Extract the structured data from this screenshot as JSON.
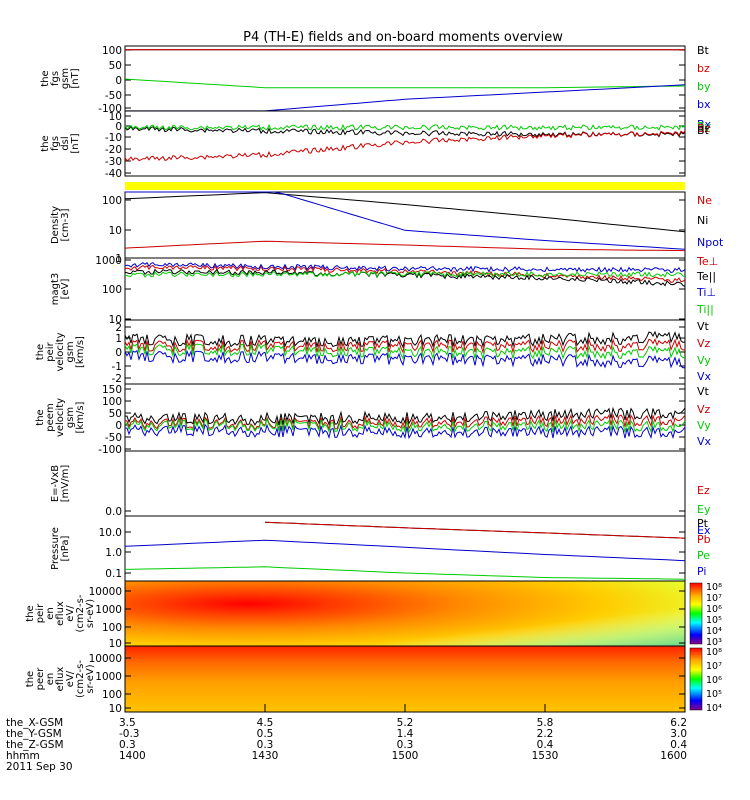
{
  "title": "P4 (TH-E) fields and on-board moments overview",
  "colors": {
    "black": "#000000",
    "red": "#cc0000",
    "green": "#00cc00",
    "blue": "#0000cc",
    "yellow": "#ffff00"
  },
  "chart_data": [
    {
      "type": "line",
      "panel": "fgs-gsm",
      "ylabel": [
        "the",
        "fgs",
        "gsm",
        "[nT]"
      ],
      "yticks": [
        "100",
        "50",
        "0",
        "-50",
        "-100"
      ],
      "ylim": [
        -100,
        100
      ],
      "x": [
        "1400",
        "1430",
        "1500",
        "1530",
        "1600"
      ],
      "legend": [
        "Bt",
        "bz",
        "by",
        "bx"
      ],
      "legend_colors": [
        "black",
        "red",
        "green",
        "blue"
      ],
      "series": [
        {
          "name": "Bt",
          "color": "black",
          "values": [
            101,
            101,
            101,
            101,
            101
          ]
        },
        {
          "name": "bz",
          "color": "red",
          "values": [
            101,
            101,
            101,
            101,
            101
          ]
        },
        {
          "name": "by",
          "color": "green",
          "values": [
            0,
            -30,
            -30,
            -30,
            -24
          ]
        },
        {
          "name": "bx",
          "color": "blue",
          "values": [
            -110,
            -110,
            -70,
            -45,
            -20
          ]
        }
      ]
    },
    {
      "type": "line",
      "panel": "fgs-dsl",
      "ylabel": [
        "the",
        "fgs",
        "dsl",
        "[nT]"
      ],
      "yticks": [
        "10",
        "0",
        "-10",
        "-20",
        "-30",
        "-40"
      ],
      "ylim": [
        -42,
        10
      ],
      "x": [
        "1400",
        "1430",
        "1500",
        "1530",
        "1600"
      ],
      "legend": [
        "Bx",
        "By",
        "Bz",
        "Bt"
      ],
      "legend_colors": [
        "blue",
        "green",
        "red",
        "black"
      ],
      "series": [
        {
          "name": "Bt",
          "color": "black",
          "values": [
            -1,
            -3,
            -5,
            -6,
            -6
          ]
        },
        {
          "name": "By",
          "color": "green",
          "values": [
            0,
            0,
            0,
            0,
            0
          ]
        },
        {
          "name": "Bz",
          "color": "red",
          "values": [
            -28,
            -24,
            -13,
            -7,
            -5
          ]
        }
      ]
    },
    {
      "type": "heatmap",
      "panel": "mode-bar",
      "color": "yellow"
    },
    {
      "type": "line",
      "panel": "density",
      "scale": "log",
      "ylabel": [
        "Density",
        "[cm-3]"
      ],
      "yticks": [
        "100",
        "10",
        "1"
      ],
      "ylim": [
        1,
        200
      ],
      "x": [
        "1400",
        "1430",
        "1500",
        "1530",
        "1600"
      ],
      "legend": [
        "Ne",
        "Ni",
        "Npot"
      ],
      "legend_colors": [
        "red",
        "black",
        "blue"
      ],
      "series": [
        {
          "name": "Ni",
          "color": "black",
          "values": [
            110,
            180,
            70,
            25,
            8
          ]
        },
        {
          "name": "Ne",
          "color": "red",
          "values": [
            2.2,
            3.8,
            2.8,
            2.0,
            1.8
          ]
        },
        {
          "name": "Npot",
          "color": "blue",
          "values": [
            250,
            250,
            9,
            4,
            2
          ]
        }
      ]
    },
    {
      "type": "line",
      "panel": "temperature",
      "scale": "log",
      "ylabel": [
        "magt3",
        "[eV]"
      ],
      "yticks": [
        "1000",
        "100",
        "10"
      ],
      "ylim": [
        10,
        1000
      ],
      "x": [
        "1400",
        "1430",
        "1500",
        "1530",
        "1600"
      ],
      "legend": [
        "Te⊥",
        "Te||",
        "Ti⊥",
        "Ti||"
      ],
      "legend_colors": [
        "red",
        "black",
        "blue",
        "green"
      ],
      "series": [
        {
          "name": "Te⊥",
          "color": "red",
          "values": [
            550,
            520,
            400,
            300,
            200
          ]
        },
        {
          "name": "Te||",
          "color": "black",
          "values": [
            400,
            380,
            300,
            250,
            150
          ]
        },
        {
          "name": "Ti⊥",
          "color": "blue",
          "values": [
            700,
            600,
            500,
            480,
            450
          ]
        },
        {
          "name": "Ti||",
          "color": "green",
          "values": [
            320,
            330,
            330,
            330,
            320
          ]
        }
      ]
    },
    {
      "type": "line",
      "panel": "peir-velocity",
      "ylabel": [
        "the",
        "peir",
        "velocity",
        "gsm",
        "[km/s]"
      ],
      "yticks": [
        "2",
        "1",
        "0",
        "-1",
        "-2"
      ],
      "ylim": [
        -2.5,
        2.5
      ],
      "x": [
        "1400",
        "1430",
        "1500",
        "1530",
        "1600"
      ],
      "legend": [
        "Vt",
        "Vz",
        "Vy",
        "Vx"
      ],
      "legend_colors": [
        "black",
        "red",
        "green",
        "blue"
      ],
      "series": [
        {
          "name": "Vt",
          "color": "black",
          "values": [
            1.0,
            0.9,
            0.9,
            1.0,
            1.2
          ]
        },
        {
          "name": "Vz",
          "color": "red",
          "values": [
            0.5,
            0.5,
            0.5,
            0.5,
            0.6
          ]
        },
        {
          "name": "Vy",
          "color": "green",
          "values": [
            0.2,
            0.2,
            0.0,
            0.0,
            0.0
          ]
        },
        {
          "name": "Vx",
          "color": "blue",
          "values": [
            -0.3,
            -0.4,
            -0.5,
            -0.6,
            -0.8
          ]
        }
      ]
    },
    {
      "type": "line",
      "panel": "peem-velocity",
      "ylabel": [
        "the",
        "peem",
        "velocity",
        "gsm",
        "[km/s]"
      ],
      "yticks": [
        "150",
        "100",
        "50",
        "0",
        "-50",
        "-100"
      ],
      "ylim": [
        -100,
        150
      ],
      "x": [
        "1400",
        "1430",
        "1500",
        "1530",
        "1600"
      ],
      "legend": [
        "Vt",
        "Vz",
        "Vy",
        "Vx"
      ],
      "legend_colors": [
        "black",
        "red",
        "green",
        "blue"
      ],
      "series": [
        {
          "name": "Vt",
          "color": "black",
          "values": [
            30,
            25,
            30,
            40,
            50
          ]
        },
        {
          "name": "Vz",
          "color": "red",
          "values": [
            10,
            5,
            10,
            15,
            20
          ]
        },
        {
          "name": "Vy",
          "color": "green",
          "values": [
            0,
            0,
            -5,
            -5,
            -5
          ]
        },
        {
          "name": "Vx",
          "color": "blue",
          "values": [
            -20,
            -25,
            -30,
            -30,
            -30
          ]
        }
      ]
    },
    {
      "type": "line",
      "panel": "efield",
      "ylabel": [
        "E=-VxB",
        "[mV/m]"
      ],
      "yticks": [
        "0.0"
      ],
      "legend": [
        "Ez",
        "Ey",
        "Ex"
      ],
      "legend_colors": [
        "red",
        "green",
        "blue"
      ],
      "series": []
    },
    {
      "type": "line",
      "panel": "pressure",
      "scale": "log",
      "ylabel": [
        "Pressure",
        "[nPa]"
      ],
      "yticks": [
        "10.0",
        "1.0",
        "0.1"
      ],
      "ylim": [
        0.05,
        40
      ],
      "x": [
        "1400",
        "1430",
        "1500",
        "1530",
        "1600"
      ],
      "legend": [
        "Pt",
        "Pb",
        "Pe",
        "Pi"
      ],
      "legend_colors": [
        "black",
        "red",
        "green",
        "blue"
      ],
      "series": [
        {
          "name": "Pt",
          "color": "black",
          "values": [
            null,
            30,
            16,
            9,
            5
          ]
        },
        {
          "name": "Pb",
          "color": "red",
          "values": [
            null,
            30,
            16,
            9,
            5
          ]
        },
        {
          "name": "Pe",
          "color": "green",
          "values": [
            0.15,
            0.2,
            0.1,
            0.06,
            0.05
          ]
        },
        {
          "name": "Pi",
          "color": "blue",
          "values": [
            2,
            4,
            1.8,
            0.8,
            0.4
          ]
        }
      ]
    },
    {
      "type": "heatmap",
      "panel": "peir-spectrogram",
      "scale": "log",
      "ylabel": [
        "the",
        "peir",
        "en",
        "eflux",
        "eV/",
        "(cm2-s-",
        "sr-eV)"
      ],
      "yticks": [
        "10000",
        "1000",
        "100",
        "10"
      ],
      "colorbar_ticks": [
        "10⁸",
        "10⁷",
        "10⁶",
        "10⁵",
        "10⁴",
        "10³"
      ]
    },
    {
      "type": "heatmap",
      "panel": "peer-spectrogram",
      "scale": "log",
      "ylabel": [
        "the",
        "peer",
        "en",
        "eflux",
        "eV/",
        "(cm2-s-",
        "sr-eV)"
      ],
      "yticks": [
        "10000",
        "1000",
        "100",
        "10"
      ],
      "colorbar_ticks": [
        "10⁸",
        "10⁷",
        "10⁶",
        "10⁵",
        "10⁴"
      ]
    }
  ],
  "x_axis": {
    "rows": [
      {
        "label": "the_X-GSM",
        "values": [
          "3.5",
          "4.5",
          "5.2",
          "5.8",
          "6.2"
        ]
      },
      {
        "label": "the_Y-GSM",
        "values": [
          "-0.3",
          "0.5",
          "1.4",
          "2.2",
          "3.0"
        ]
      },
      {
        "label": "the_Z-GSM",
        "values": [
          "0.3",
          "0.3",
          "0.3",
          "0.4",
          "0.4"
        ]
      },
      {
        "label": "hhmm",
        "values": [
          "1400",
          "1430",
          "1500",
          "1530",
          "1600"
        ]
      }
    ],
    "date": "2011 Sep 30"
  }
}
